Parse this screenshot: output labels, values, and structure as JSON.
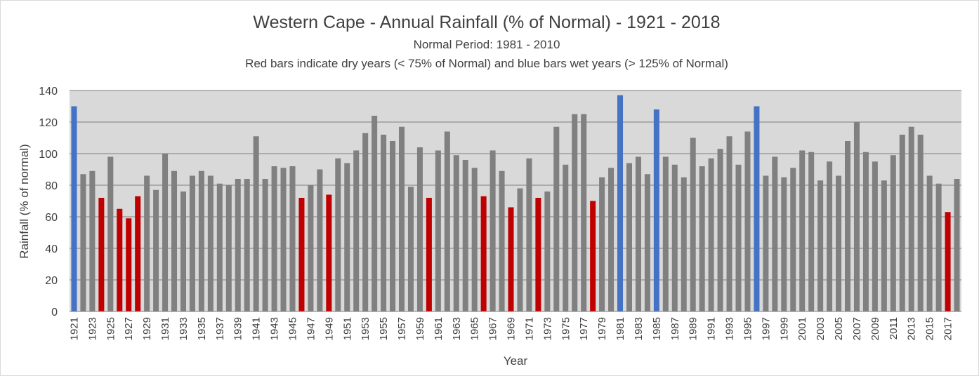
{
  "chart_data": {
    "type": "bar",
    "title": "Western Cape - Annual Rainfall (% of Normal) - 1921 - 2018",
    "subtitle": "Normal Period: 1981 - 2010",
    "subtitle2": "Red bars indicate dry years (< 75% of Normal) and blue bars wet years (> 125% of Normal)",
    "xlabel": "Year",
    "ylabel": "Rainfall (% of normal)",
    "ylim": [
      0,
      140
    ],
    "yticks": [
      0,
      20,
      40,
      60,
      80,
      100,
      120,
      140
    ],
    "grid": true,
    "colors": {
      "normal": "#808080",
      "dry": "#c00000",
      "wet": "#4472c4",
      "plot_bg": "#d9d9d9",
      "grid": "#7f7f7f"
    },
    "thresholds": {
      "dry_below": 75,
      "wet_above": 125
    },
    "start_year": 1921,
    "tick_step": 2,
    "values": [
      130,
      87,
      89,
      72,
      98,
      65,
      59,
      73,
      86,
      77,
      100,
      89,
      76,
      86,
      89,
      86,
      81,
      80,
      84,
      84,
      111,
      84,
      92,
      91,
      92,
      72,
      80,
      90,
      74,
      97,
      94,
      102,
      113,
      124,
      112,
      108,
      117,
      79,
      104,
      72,
      102,
      114,
      99,
      96,
      91,
      73,
      102,
      89,
      66,
      78,
      97,
      72,
      76,
      117,
      93,
      125,
      125,
      70,
      85,
      91,
      137,
      94,
      98,
      87,
      128,
      98,
      93,
      85,
      110,
      92,
      97,
      103,
      111,
      93,
      114,
      130,
      86,
      98,
      85,
      91,
      102,
      101,
      83,
      95,
      86,
      108,
      120,
      101,
      95,
      83,
      99,
      112,
      117,
      112,
      86,
      81,
      63,
      84
    ]
  }
}
